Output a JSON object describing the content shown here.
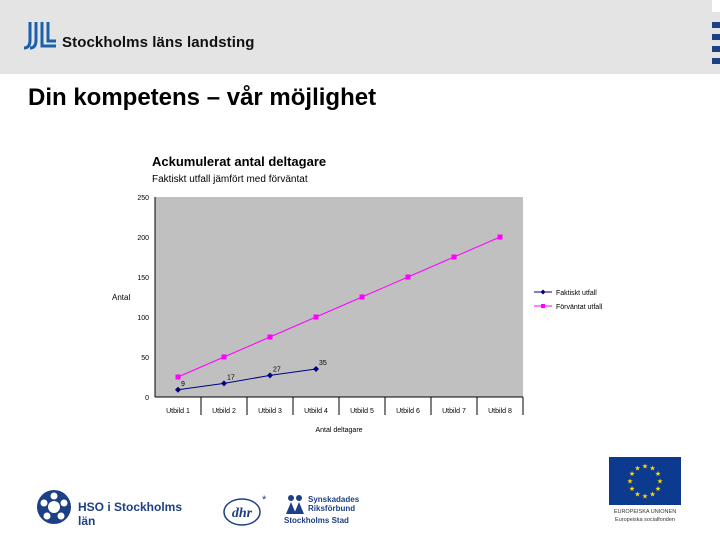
{
  "header": {
    "org_name": "Stockholms läns landsting",
    "logo_icon": "sll-logo-icon"
  },
  "slide": {
    "title": "Din kompetens – vår möjlighet"
  },
  "chart_data": {
    "type": "line",
    "title": "Ackumulerat antal deltagare",
    "subtitle": "Faktiskt utfall jämfört med förväntat",
    "xlabel": "Antal deltagare",
    "ylabel": "Antal",
    "categories": [
      "Utbild 1",
      "Utbild 2",
      "Utbild 3",
      "Utbild 4",
      "Utbild 5",
      "Utbild 6",
      "Utbild 7",
      "Utbild 8"
    ],
    "ylim": [
      0,
      250
    ],
    "yticks": [
      0,
      50,
      100,
      150,
      200,
      250
    ],
    "plot_background": "#c0c0c0",
    "legend_position": "right",
    "series": [
      {
        "name": "Faktiskt utfall",
        "color": "#000080",
        "values": [
          9,
          17,
          27,
          35,
          null,
          null,
          null,
          null
        ],
        "labels": [
          "9",
          "17",
          "27",
          "35"
        ]
      },
      {
        "name": "Förväntat utfall",
        "color": "#ff00ff",
        "values": [
          25,
          50,
          75,
          100,
          125,
          150,
          175,
          200
        ]
      }
    ]
  },
  "footer": {
    "hso_label": "HSO i Stockholms län",
    "dhr_label": "dhr",
    "srf_line1": "Synskadades",
    "srf_line2": "Riksförbund",
    "srf_line3": "Stockholms Stad",
    "eu_line1": "EUROPEISKA UNIONEN",
    "eu_line2": "Europeiska socialfonden"
  },
  "colors": {
    "header_bg": "#e4e4e4",
    "brand_blue": "#1d3f86",
    "eu_blue": "#0b3a8e",
    "eu_star": "#ffdd00"
  }
}
